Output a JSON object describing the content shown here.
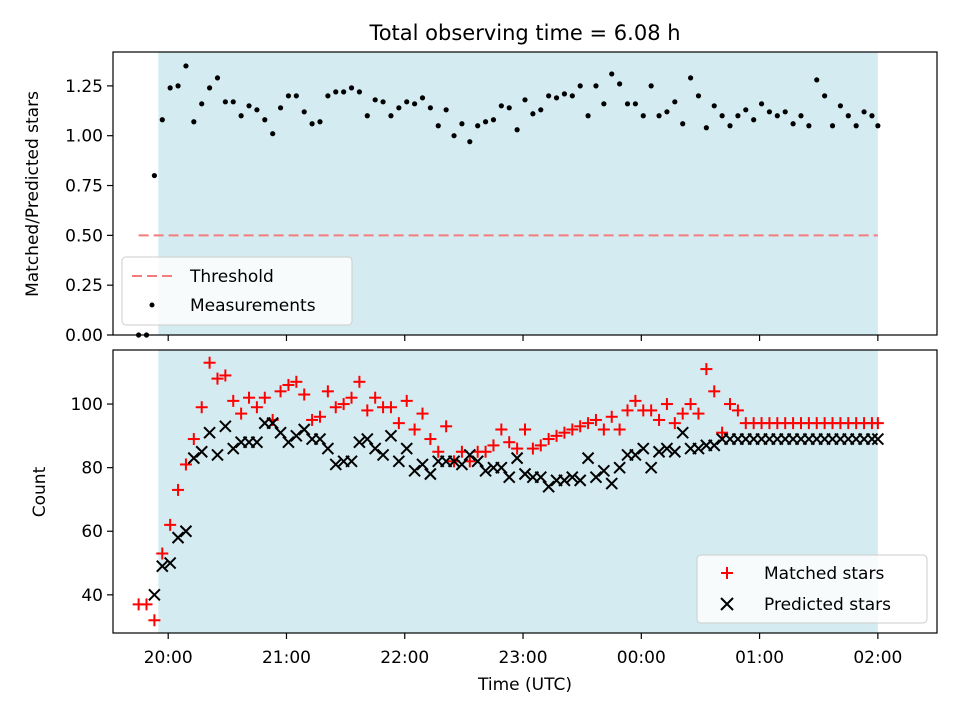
{
  "title": "Total observing time = 6.08 h",
  "xlabel": "Time (UTC)",
  "xtick_labels": [
    "20:00",
    "21:00",
    "22:00",
    "23:00",
    "00:00",
    "01:00",
    "02:00"
  ],
  "colors": {
    "observing_span": "#d4ebf1",
    "measurements": "#000000",
    "threshold": "#f47c7c",
    "matched": "#ff0000",
    "predicted": "#000000"
  },
  "chart_data": [
    {
      "type": "scatter",
      "ylabel": "Matched/Predicted stars",
      "ylim": [
        0,
        1.42
      ],
      "yticks": [
        0.0,
        0.25,
        0.5,
        0.75,
        1.0,
        1.25
      ],
      "ytick_labels": [
        "0.00",
        "0.25",
        "0.50",
        "0.75",
        "1.00",
        "1.25"
      ],
      "xlim": [
        "19:32",
        "02:30"
      ],
      "observing_span": [
        "19:55",
        "02:00"
      ],
      "legend": {
        "placement": "lower-left",
        "entries": [
          "Threshold",
          "Measurements"
        ]
      },
      "threshold": {
        "label": "Threshold",
        "value": 0.5,
        "x_range": [
          "19:45",
          "02:00"
        ],
        "style": "dashed"
      },
      "series": [
        {
          "name": "Measurements",
          "x": [
            "19:45",
            "19:49",
            "19:53",
            "19:57",
            "20:01",
            "20:05",
            "20:09",
            "20:13",
            "20:17",
            "20:21",
            "20:25",
            "20:29",
            "20:33",
            "20:37",
            "20:41",
            "20:45",
            "20:49",
            "20:53",
            "20:57",
            "21:01",
            "21:05",
            "21:09",
            "21:13",
            "21:17",
            "21:21",
            "21:25",
            "21:29",
            "21:33",
            "21:37",
            "21:41",
            "21:45",
            "21:49",
            "21:53",
            "21:57",
            "22:01",
            "22:05",
            "22:09",
            "22:13",
            "22:17",
            "22:21",
            "22:25",
            "22:29",
            "22:33",
            "22:37",
            "22:41",
            "22:45",
            "22:49",
            "22:53",
            "22:57",
            "23:01",
            "23:05",
            "23:09",
            "23:13",
            "23:17",
            "23:21",
            "23:25",
            "23:29",
            "23:33",
            "23:37",
            "23:41",
            "23:45",
            "23:49",
            "23:53",
            "23:57",
            "00:01",
            "00:05",
            "00:09",
            "00:13",
            "00:17",
            "00:21",
            "00:25",
            "00:29",
            "00:33",
            "00:37",
            "00:41",
            "00:45",
            "00:49",
            "00:53",
            "00:57",
            "01:01",
            "01:05",
            "01:09",
            "01:13",
            "01:17",
            "01:21",
            "01:25",
            "01:29",
            "01:33",
            "01:37",
            "01:41",
            "01:45",
            "01:49",
            "01:53",
            "01:57",
            "02:00"
          ],
          "values": [
            0.0,
            0.0,
            0.8,
            1.08,
            1.24,
            1.25,
            1.35,
            1.07,
            1.16,
            1.24,
            1.29,
            1.17,
            1.17,
            1.1,
            1.15,
            1.13,
            1.08,
            1.01,
            1.14,
            1.2,
            1.2,
            1.12,
            1.06,
            1.07,
            1.2,
            1.22,
            1.22,
            1.24,
            1.22,
            1.1,
            1.18,
            1.17,
            1.1,
            1.14,
            1.17,
            1.16,
            1.19,
            1.14,
            1.05,
            1.13,
            1.0,
            1.06,
            0.97,
            1.05,
            1.07,
            1.08,
            1.15,
            1.14,
            1.03,
            1.18,
            1.11,
            1.13,
            1.2,
            1.19,
            1.21,
            1.2,
            1.25,
            1.1,
            1.25,
            1.16,
            1.31,
            1.26,
            1.16,
            1.16,
            1.1,
            1.25,
            1.1,
            1.12,
            1.17,
            1.06,
            1.29,
            1.2,
            1.04,
            1.15,
            1.1,
            1.05,
            1.1,
            1.13,
            1.08,
            1.16,
            1.12,
            1.1,
            1.12,
            1.06,
            1.1,
            1.05,
            1.28,
            1.2,
            1.05,
            1.15,
            1.1,
            1.05,
            1.12,
            1.1,
            1.05
          ]
        }
      ]
    },
    {
      "type": "scatter",
      "ylabel": "Count",
      "ylim": [
        28,
        117
      ],
      "yticks": [
        40,
        60,
        80,
        100
      ],
      "ytick_labels": [
        "40",
        "60",
        "80",
        "100"
      ],
      "xlim": [
        "19:32",
        "02:30"
      ],
      "observing_span": [
        "19:55",
        "02:00"
      ],
      "legend": {
        "placement": "lower-right",
        "entries": [
          "Matched stars",
          "Predicted stars"
        ]
      },
      "series": [
        {
          "name": "Matched stars",
          "x": [
            "19:45",
            "19:49",
            "19:53",
            "19:57",
            "20:01",
            "20:05",
            "20:09",
            "20:13",
            "20:17",
            "20:21",
            "20:25",
            "20:29",
            "20:33",
            "20:37",
            "20:41",
            "20:45",
            "20:49",
            "20:53",
            "20:57",
            "21:01",
            "21:05",
            "21:09",
            "21:13",
            "21:17",
            "21:21",
            "21:25",
            "21:29",
            "21:33",
            "21:37",
            "21:41",
            "21:45",
            "21:49",
            "21:53",
            "21:57",
            "22:01",
            "22:05",
            "22:09",
            "22:13",
            "22:17",
            "22:21",
            "22:25",
            "22:29",
            "22:33",
            "22:37",
            "22:41",
            "22:45",
            "22:49",
            "22:53",
            "22:57",
            "23:01",
            "23:05",
            "23:09",
            "23:13",
            "23:17",
            "23:21",
            "23:25",
            "23:29",
            "23:33",
            "23:37",
            "23:41",
            "23:45",
            "23:49",
            "23:53",
            "23:57",
            "00:01",
            "00:05",
            "00:09",
            "00:13",
            "00:17",
            "00:21",
            "00:25",
            "00:29",
            "00:33",
            "00:37",
            "00:41",
            "00:45",
            "00:49",
            "00:53",
            "00:57",
            "01:01",
            "01:05",
            "01:09",
            "01:13",
            "01:17",
            "01:21",
            "01:25",
            "01:29",
            "01:33",
            "01:37",
            "01:41",
            "01:45",
            "01:49",
            "01:53",
            "01:57",
            "02:00"
          ],
          "values": [
            37,
            37,
            32,
            53,
            62,
            73,
            81,
            89,
            99,
            113,
            108,
            109,
            101,
            97,
            102,
            99,
            102,
            95,
            104,
            106,
            107,
            103,
            95,
            96,
            104,
            99,
            100,
            102,
            107,
            98,
            102,
            99,
            99,
            94,
            101,
            92,
            97,
            89,
            85,
            93,
            82,
            85,
            82,
            85,
            85,
            87,
            92,
            88,
            86,
            92,
            86,
            87,
            89,
            90,
            91,
            92,
            93,
            94,
            95,
            92,
            96,
            92,
            98,
            101,
            98,
            98,
            95,
            100,
            94,
            97,
            100,
            97,
            111,
            104,
            91,
            100,
            98,
            94,
            94,
            94,
            94,
            94,
            94,
            94,
            94,
            94,
            94,
            94,
            94,
            94,
            94,
            94,
            94,
            94,
            94
          ]
        },
        {
          "name": "Predicted stars",
          "x": [
            "19:53",
            "19:57",
            "20:01",
            "20:05",
            "20:09",
            "20:13",
            "20:17",
            "20:21",
            "20:25",
            "20:29",
            "20:33",
            "20:37",
            "20:41",
            "20:45",
            "20:49",
            "20:53",
            "20:57",
            "21:01",
            "21:05",
            "21:09",
            "21:13",
            "21:17",
            "21:21",
            "21:25",
            "21:29",
            "21:33",
            "21:37",
            "21:41",
            "21:45",
            "21:49",
            "21:53",
            "21:57",
            "22:01",
            "22:05",
            "22:09",
            "22:13",
            "22:17",
            "22:21",
            "22:25",
            "22:29",
            "22:33",
            "22:37",
            "22:41",
            "22:45",
            "22:49",
            "22:53",
            "22:57",
            "23:01",
            "23:05",
            "23:09",
            "23:13",
            "23:17",
            "23:21",
            "23:25",
            "23:29",
            "23:33",
            "23:37",
            "23:41",
            "23:45",
            "23:49",
            "23:53",
            "23:57",
            "00:01",
            "00:05",
            "00:09",
            "00:13",
            "00:17",
            "00:21",
            "00:25",
            "00:29",
            "00:33",
            "00:37",
            "00:41",
            "00:45",
            "00:49",
            "00:53",
            "00:57",
            "01:01",
            "01:05",
            "01:09",
            "01:13",
            "01:17",
            "01:21",
            "01:25",
            "01:29",
            "01:33",
            "01:37",
            "01:41",
            "01:45",
            "01:49",
            "01:53",
            "01:57",
            "02:00"
          ],
          "values": [
            40,
            49,
            50,
            58,
            60,
            83,
            85,
            91,
            84,
            93,
            86,
            88,
            88,
            88,
            94,
            94,
            91,
            88,
            90,
            92,
            89,
            89,
            86,
            81,
            82,
            82,
            88,
            89,
            86,
            84,
            90,
            82,
            86,
            79,
            81,
            78,
            82,
            82,
            82,
            81,
            84,
            82,
            79,
            80,
            80,
            77,
            83,
            78,
            77,
            77,
            74,
            76,
            76,
            77,
            76,
            83,
            77,
            79,
            75,
            80,
            84,
            84,
            86,
            80,
            85,
            86,
            85,
            91,
            86,
            86,
            87,
            87,
            89,
            89,
            89,
            89,
            89,
            89,
            89,
            89,
            89,
            89,
            89,
            89,
            89,
            89,
            89,
            89,
            89,
            89,
            89,
            89,
            89
          ]
        }
      ]
    }
  ]
}
